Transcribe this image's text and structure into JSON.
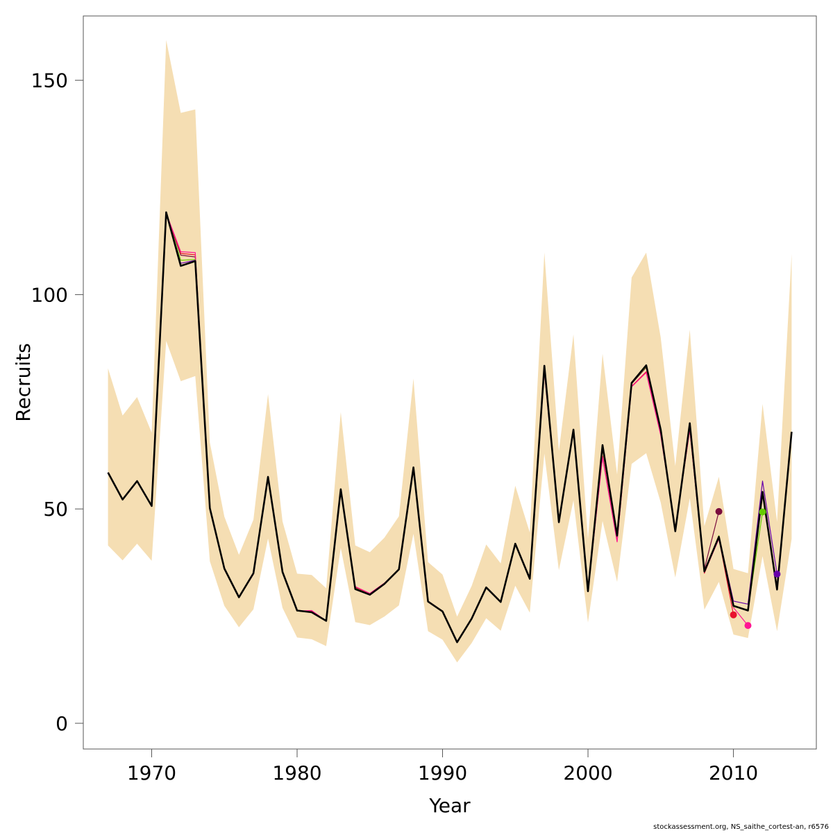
{
  "chart_data": {
    "type": "line",
    "xlabel": "Year",
    "ylabel": "Recruits",
    "xlim": [
      1965.3,
      2015.7
    ],
    "ylim": [
      -6,
      165
    ],
    "x_ticks": [
      1970,
      1980,
      1990,
      2000,
      2010
    ],
    "y_ticks": [
      0,
      50,
      100,
      150
    ],
    "grid": false,
    "legend": "none",
    "band_color": "#F5DEB3",
    "confidence_band": {
      "x": [
        1967,
        1968,
        1969,
        1970,
        1971,
        1972,
        1973,
        1974,
        1975,
        1976,
        1977,
        1978,
        1979,
        1980,
        1981,
        1982,
        1983,
        1984,
        1985,
        1986,
        1987,
        1988,
        1989,
        1990,
        1991,
        1992,
        1993,
        1994,
        1995,
        1996,
        1997,
        1998,
        1999,
        2000,
        2001,
        2002,
        2003,
        2004,
        2005,
        2006,
        2007,
        2008,
        2009,
        2010,
        2011,
        2012,
        2013,
        2014
      ],
      "lower": [
        41.5,
        38.0,
        41.9,
        37.9,
        89.2,
        79.8,
        81.0,
        37.8,
        27.4,
        22.4,
        26.6,
        43.1,
        26.9,
        20.0,
        19.6,
        18.0,
        40.9,
        23.6,
        22.9,
        24.9,
        27.5,
        44.2,
        21.5,
        19.5,
        14.2,
        18.7,
        24.5,
        21.6,
        32.1,
        25.8,
        62.9,
        35.7,
        52.0,
        23.5,
        47.2,
        33.0,
        60.5,
        63.0,
        51.5,
        34.0,
        52.5,
        26.5,
        33.0,
        20.7,
        19.9,
        39.0,
        21.5,
        43.0
      ],
      "upper": [
        82.8,
        71.8,
        76.1,
        67.8,
        159.4,
        142.4,
        143.2,
        65.5,
        48.2,
        39.3,
        47.5,
        76.8,
        47.1,
        34.9,
        34.6,
        31.5,
        72.6,
        41.5,
        39.9,
        43.3,
        48.3,
        80.4,
        37.6,
        34.7,
        24.9,
        32.0,
        41.7,
        37.3,
        55.4,
        44.5,
        109.8,
        63.5,
        90.7,
        43.0,
        86.2,
        58.0,
        104.0,
        109.8,
        90.0,
        60.0,
        91.8,
        46.0,
        57.5,
        36.0,
        35.0,
        74.5,
        47.0,
        109.5
      ]
    },
    "series": [
      {
        "color": "#000000",
        "x": [
          1967,
          1968,
          1969,
          1970,
          1971,
          1972,
          1973,
          1974,
          1975,
          1976,
          1977,
          1978,
          1979,
          1980,
          1981,
          1982,
          1983,
          1984,
          1985,
          1986,
          1987,
          1988,
          1989,
          1990,
          1991,
          1992,
          1993,
          1994,
          1995,
          1996,
          1997,
          1998,
          1999,
          2000,
          2001,
          2002,
          2003,
          2004,
          2005,
          2006,
          2007,
          2008,
          2009,
          2010,
          2011,
          2012,
          2013,
          2014
        ],
        "values": [
          58.5,
          52.2,
          56.5,
          50.7,
          119.2,
          106.7,
          107.8,
          50.2,
          36.1,
          29.4,
          35.0,
          57.5,
          35.3,
          26.3,
          25.9,
          23.9,
          54.6,
          31.3,
          30.0,
          32.5,
          35.9,
          59.7,
          28.4,
          26.1,
          18.9,
          24.4,
          31.7,
          28.3,
          41.9,
          33.7,
          83.4,
          46.9,
          68.5,
          30.8,
          64.9,
          43.8,
          79.4,
          83.5,
          68.5,
          44.8,
          70.0,
          35.4,
          43.5,
          27.4,
          26.3,
          54.0,
          31.2,
          68.0
        ]
      },
      {
        "color": "#7a0c3d",
        "x": [
          1967,
          1968,
          1969,
          1970,
          1971,
          1972,
          1973,
          1974,
          1975,
          1976,
          1977,
          1978,
          1979,
          1980,
          1981,
          1982,
          1983,
          1984,
          1985,
          1986,
          1987,
          1988,
          1989,
          1990,
          1991,
          1992,
          1993,
          1994,
          1995,
          1996,
          1997,
          1998,
          1999,
          2000,
          2001,
          2002,
          2003,
          2004,
          2005,
          2006,
          2007,
          2008,
          2009
        ],
        "values": [
          58.4,
          52.1,
          56.4,
          50.6,
          119.0,
          109.2,
          108.8,
          50.0,
          36.0,
          29.3,
          34.9,
          57.3,
          35.2,
          26.2,
          25.9,
          23.9,
          54.4,
          31.6,
          30.2,
          32.6,
          35.9,
          59.4,
          28.4,
          26.1,
          18.9,
          24.4,
          31.7,
          28.3,
          41.9,
          33.7,
          82.8,
          46.9,
          68.3,
          30.9,
          63.8,
          43.5,
          79.2,
          83.0,
          68.0,
          45.0,
          69.0,
          36.0,
          49.4
        ]
      },
      {
        "color": "#e8112d",
        "x": [
          1967,
          1968,
          1969,
          1970,
          1971,
          1972,
          1973,
          1974,
          1975,
          1976,
          1977,
          1978,
          1979,
          1980,
          1981,
          1982,
          1983,
          1984,
          1985,
          1986,
          1987,
          1988,
          1989,
          1990,
          1991,
          1992,
          1993,
          1994,
          1995,
          1996,
          1997,
          1998,
          1999,
          2000,
          2001,
          2002,
          2003,
          2004,
          2005,
          2006,
          2007,
          2008,
          2009,
          2010
        ],
        "values": [
          58.4,
          52.1,
          56.4,
          50.6,
          119.0,
          109.6,
          109.3,
          49.9,
          35.9,
          29.3,
          34.8,
          57.2,
          35.1,
          26.2,
          26.2,
          23.9,
          54.3,
          31.8,
          30.2,
          32.6,
          35.9,
          59.2,
          28.5,
          26.2,
          18.9,
          24.4,
          31.7,
          28.3,
          41.9,
          33.6,
          82.3,
          46.9,
          68.1,
          31.0,
          62.3,
          42.5,
          78.6,
          82.0,
          67.5,
          45.2,
          68.6,
          35.0,
          43.2,
          25.3
        ]
      },
      {
        "color": "#ff1493",
        "x": [
          1967,
          1968,
          1969,
          1970,
          1971,
          1972,
          1973,
          1974,
          1975,
          1976,
          1977,
          1978,
          1979,
          1980,
          1981,
          1982,
          1983,
          1984,
          1985,
          1986,
          1987,
          1988,
          1989,
          1990,
          1991,
          1992,
          1993,
          1994,
          1995,
          1996,
          1997,
          1998,
          1999,
          2000,
          2001,
          2002,
          2003,
          2004,
          2005,
          2006,
          2007,
          2008,
          2009,
          2010,
          2011
        ],
        "values": [
          58.4,
          52.1,
          56.4,
          50.6,
          119.0,
          110.0,
          109.8,
          49.9,
          35.9,
          29.3,
          34.8,
          57.2,
          35.1,
          26.2,
          26.3,
          23.9,
          54.3,
          31.9,
          30.3,
          32.7,
          35.9,
          59.2,
          28.5,
          26.2,
          18.9,
          24.4,
          31.7,
          28.3,
          41.9,
          33.6,
          82.0,
          46.9,
          68.0,
          31.0,
          62.0,
          42.3,
          78.5,
          81.8,
          67.2,
          45.3,
          68.5,
          35.2,
          43.0,
          27.0,
          22.8
        ]
      },
      {
        "color": "#66cc00",
        "x": [
          1967,
          1968,
          1969,
          1970,
          1971,
          1972,
          1973,
          1974,
          1975,
          1976,
          1977,
          1978,
          1979,
          1980,
          1981,
          1982,
          1983,
          1984,
          1985,
          1986,
          1987,
          1988,
          1989,
          1990,
          1991,
          1992,
          1993,
          1994,
          1995,
          1996,
          1997,
          1998,
          1999,
          2000,
          2001,
          2002,
          2003,
          2004,
          2005,
          2006,
          2007,
          2008,
          2009,
          2010,
          2011,
          2012
        ],
        "values": [
          58.4,
          52.1,
          56.4,
          50.6,
          119.0,
          108.0,
          108.2,
          50.0,
          36.0,
          29.3,
          34.9,
          57.4,
          35.2,
          26.2,
          26.0,
          23.9,
          54.5,
          31.5,
          30.1,
          32.5,
          35.9,
          59.5,
          28.4,
          26.1,
          18.9,
          24.4,
          31.7,
          28.3,
          41.9,
          33.7,
          83.0,
          46.9,
          68.4,
          30.9,
          64.0,
          43.6,
          79.3,
          83.2,
          68.2,
          44.9,
          69.8,
          35.3,
          43.8,
          27.2,
          26.5,
          49.3
        ]
      },
      {
        "color": "#6600aa",
        "x": [
          1967,
          1968,
          1969,
          1970,
          1971,
          1972,
          1973,
          1974,
          1975,
          1976,
          1977,
          1978,
          1979,
          1980,
          1981,
          1982,
          1983,
          1984,
          1985,
          1986,
          1987,
          1988,
          1989,
          1990,
          1991,
          1992,
          1993,
          1994,
          1995,
          1996,
          1997,
          1998,
          1999,
          2000,
          2001,
          2002,
          2003,
          2004,
          2005,
          2006,
          2007,
          2008,
          2009,
          2010,
          2011,
          2012,
          2013
        ],
        "values": [
          58.5,
          52.2,
          56.5,
          50.7,
          119.1,
          107.3,
          108.0,
          50.1,
          36.1,
          29.4,
          35.0,
          57.5,
          35.3,
          26.3,
          25.9,
          23.9,
          54.6,
          31.4,
          30.0,
          32.5,
          35.9,
          59.6,
          28.4,
          26.1,
          18.9,
          24.4,
          31.7,
          28.3,
          41.9,
          33.7,
          83.2,
          46.9,
          68.5,
          30.8,
          64.5,
          43.7,
          79.4,
          83.4,
          68.4,
          44.8,
          69.9,
          35.4,
          43.6,
          28.5,
          27.8,
          56.5,
          34.8
        ]
      }
    ]
  },
  "credit": "stockassessment.org, NS_saithe_cortest-an, r6576"
}
